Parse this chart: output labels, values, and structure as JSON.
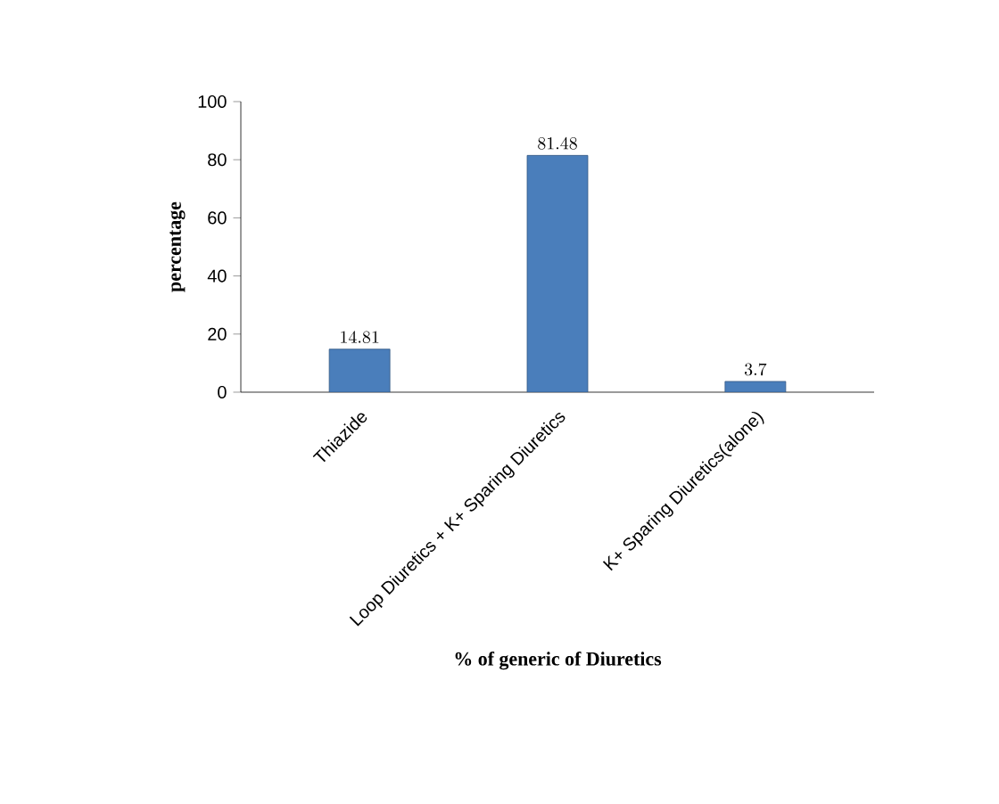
{
  "chart_data": {
    "type": "bar",
    "xlabel": "% of generic of Diuretics",
    "ylabel": "percentage",
    "categories": [
      "Thiazide",
      "Loop Diuretics + K+ Sparing Diuretics",
      "K+ Sparing Diuretics(alone)"
    ],
    "values": [
      14.81,
      81.48,
      3.7
    ],
    "color": "#4a7ebb",
    "ylim": [
      0,
      100
    ],
    "yticks": [
      0,
      20,
      40,
      60,
      80,
      100
    ],
    "data_labels": true
  }
}
